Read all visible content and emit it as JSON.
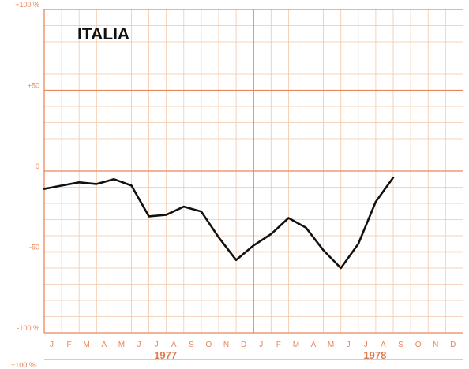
{
  "chart_data": {
    "type": "line",
    "title": "ITALIA",
    "ylim": [
      -100,
      100
    ],
    "ytick_labels": [
      {
        "value": 100,
        "label": "+100 %"
      },
      {
        "value": 50,
        "label": "+50"
      },
      {
        "value": 0,
        "label": "0"
      },
      {
        "value": -50,
        "label": "-50"
      },
      {
        "value": -100,
        "label": "-100 %"
      }
    ],
    "footer_label": "+100 %",
    "months": [
      "J",
      "F",
      "M",
      "A",
      "M",
      "J",
      "J",
      "A",
      "S",
      "O",
      "N",
      "D",
      "J",
      "F",
      "M",
      "A",
      "M",
      "J",
      "J",
      "A",
      "S",
      "O",
      "N",
      "D"
    ],
    "years": [
      {
        "label": "1977",
        "month_index": 6.5
      },
      {
        "label": "1978",
        "month_index": 18.5
      }
    ],
    "x": [
      0,
      1,
      2,
      3,
      4,
      5,
      6,
      7,
      8,
      9,
      10,
      11,
      12,
      13,
      14,
      15,
      16,
      17,
      18,
      19,
      20
    ],
    "values": [
      -11,
      -9,
      -7,
      -8,
      -5,
      -9,
      -28,
      -27,
      -22,
      -25,
      -41,
      -55,
      -46,
      -39,
      -29,
      -35,
      -49,
      -60,
      -45,
      -19,
      -4
    ],
    "grid": true,
    "colors": {
      "grid": "#f3c7a8",
      "axis": "#e8875a",
      "line": "#111111"
    }
  }
}
